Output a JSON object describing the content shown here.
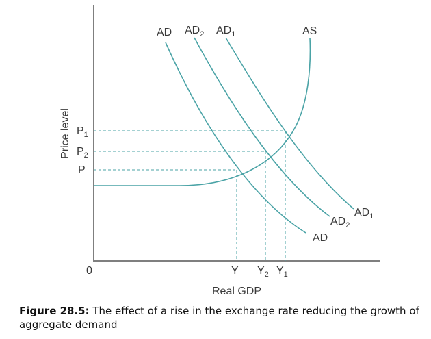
{
  "axes": {
    "y_label": "Price level",
    "x_label": "Real GDP",
    "origin": "0"
  },
  "curves": {
    "AD": "AD",
    "AD2": {
      "base": "AD",
      "sub": "2"
    },
    "AD1": {
      "base": "AD",
      "sub": "1"
    },
    "AS": "AS"
  },
  "price_levels": [
    {
      "base": "P",
      "sub": "1"
    },
    {
      "base": "P",
      "sub": "2"
    },
    {
      "base": "P",
      "sub": ""
    }
  ],
  "outputs": [
    {
      "base": "Y",
      "sub": ""
    },
    {
      "base": "Y",
      "sub": "2"
    },
    {
      "base": "Y",
      "sub": "1"
    }
  ],
  "caption": {
    "label": "Figure 28.5:",
    "text": " The effect of a rise in the exchange rate reducing the growth of aggregate demand"
  },
  "colors": {
    "curve": "#4aa3a6",
    "axis": "#555555"
  }
}
